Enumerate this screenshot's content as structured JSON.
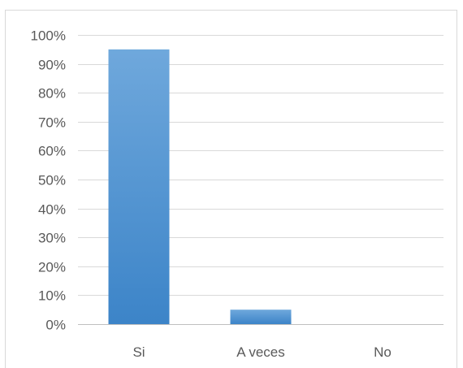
{
  "chart_data": {
    "type": "bar",
    "categories": [
      "Si",
      "A veces",
      "No"
    ],
    "values": [
      95,
      5,
      0
    ],
    "ylim": [
      0,
      100
    ],
    "yticks": [
      0,
      10,
      20,
      30,
      40,
      50,
      60,
      70,
      80,
      90,
      100
    ],
    "ytick_labels": [
      "0%",
      "10%",
      "20%",
      "30%",
      "40%",
      "50%",
      "60%",
      "70%",
      "80%",
      "90%",
      "100%"
    ],
    "grid": true,
    "bar_color": "#5b9bd5",
    "bar_color_top": "#6fa8dc",
    "bar_color_bottom": "#3c84c8"
  }
}
